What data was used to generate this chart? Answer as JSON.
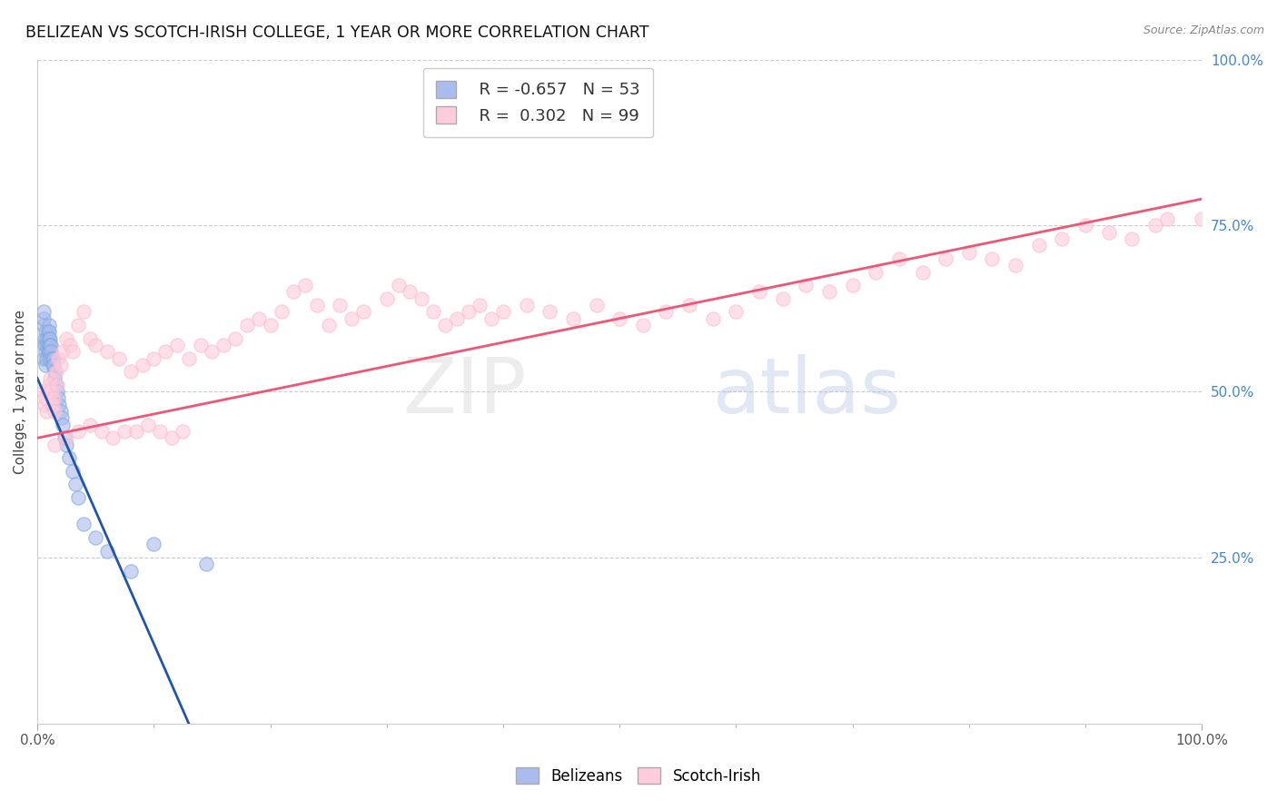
{
  "title": "BELIZEAN VS SCOTCH-IRISH COLLEGE, 1 YEAR OR MORE CORRELATION CHART",
  "source_text": "Source: ZipAtlas.com",
  "ylabel": "College, 1 year or more",
  "xlim": [
    0.0,
    1.0
  ],
  "ylim": [
    0.0,
    1.0
  ],
  "ytick_vals_right": [
    0.25,
    0.5,
    0.75,
    1.0
  ],
  "ytick_labels_right": [
    "25.0%",
    "50.0%",
    "75.0%",
    "100.0%"
  ],
  "grid_color": "#cccccc",
  "background_color": "#ffffff",
  "legend_r_blue": "-0.657",
  "legend_n_blue": "53",
  "legend_r_pink": "0.302",
  "legend_n_pink": "99",
  "blue_scatter_x": [
    0.005,
    0.005,
    0.005,
    0.005,
    0.006,
    0.006,
    0.007,
    0.007,
    0.007,
    0.008,
    0.008,
    0.008,
    0.009,
    0.009,
    0.009,
    0.009,
    0.01,
    0.01,
    0.01,
    0.01,
    0.01,
    0.01,
    0.011,
    0.011,
    0.011,
    0.012,
    0.012,
    0.012,
    0.013,
    0.013,
    0.014,
    0.014,
    0.015,
    0.015,
    0.016,
    0.017,
    0.018,
    0.019,
    0.02,
    0.021,
    0.022,
    0.023,
    0.025,
    0.027,
    0.03,
    0.033,
    0.035,
    0.04,
    0.05,
    0.06,
    0.08,
    0.1,
    0.145
  ],
  "blue_scatter_y": [
    0.6,
    0.61,
    0.62,
    0.55,
    0.58,
    0.57,
    0.59,
    0.56,
    0.54,
    0.58,
    0.57,
    0.55,
    0.59,
    0.58,
    0.57,
    0.56,
    0.6,
    0.59,
    0.58,
    0.57,
    0.56,
    0.55,
    0.58,
    0.57,
    0.56,
    0.57,
    0.56,
    0.55,
    0.55,
    0.54,
    0.55,
    0.54,
    0.53,
    0.52,
    0.51,
    0.5,
    0.49,
    0.48,
    0.47,
    0.46,
    0.45,
    0.43,
    0.42,
    0.4,
    0.38,
    0.36,
    0.34,
    0.3,
    0.28,
    0.26,
    0.23,
    0.27,
    0.24
  ],
  "pink_scatter_x": [
    0.005,
    0.006,
    0.007,
    0.008,
    0.009,
    0.01,
    0.011,
    0.012,
    0.013,
    0.014,
    0.015,
    0.016,
    0.017,
    0.018,
    0.02,
    0.022,
    0.025,
    0.028,
    0.03,
    0.035,
    0.04,
    0.045,
    0.05,
    0.06,
    0.07,
    0.08,
    0.09,
    0.1,
    0.11,
    0.12,
    0.13,
    0.14,
    0.15,
    0.16,
    0.17,
    0.18,
    0.19,
    0.2,
    0.21,
    0.22,
    0.23,
    0.24,
    0.25,
    0.26,
    0.27,
    0.28,
    0.3,
    0.31,
    0.32,
    0.33,
    0.34,
    0.35,
    0.36,
    0.37,
    0.38,
    0.39,
    0.4,
    0.42,
    0.44,
    0.46,
    0.48,
    0.5,
    0.52,
    0.54,
    0.56,
    0.58,
    0.6,
    0.62,
    0.64,
    0.66,
    0.68,
    0.7,
    0.72,
    0.74,
    0.76,
    0.78,
    0.8,
    0.82,
    0.84,
    0.86,
    0.88,
    0.9,
    0.92,
    0.94,
    0.96,
    0.97,
    1.0,
    0.015,
    0.025,
    0.035,
    0.045,
    0.055,
    0.065,
    0.075,
    0.085,
    0.095,
    0.105,
    0.115,
    0.125
  ],
  "pink_scatter_y": [
    0.5,
    0.48,
    0.49,
    0.47,
    0.5,
    0.51,
    0.52,
    0.5,
    0.48,
    0.49,
    0.47,
    0.53,
    0.51,
    0.55,
    0.54,
    0.56,
    0.58,
    0.57,
    0.56,
    0.6,
    0.62,
    0.58,
    0.57,
    0.56,
    0.55,
    0.53,
    0.54,
    0.55,
    0.56,
    0.57,
    0.55,
    0.57,
    0.56,
    0.57,
    0.58,
    0.6,
    0.61,
    0.6,
    0.62,
    0.65,
    0.66,
    0.63,
    0.6,
    0.63,
    0.61,
    0.62,
    0.64,
    0.66,
    0.65,
    0.64,
    0.62,
    0.6,
    0.61,
    0.62,
    0.63,
    0.61,
    0.62,
    0.63,
    0.62,
    0.61,
    0.63,
    0.61,
    0.6,
    0.62,
    0.63,
    0.61,
    0.62,
    0.65,
    0.64,
    0.66,
    0.65,
    0.66,
    0.68,
    0.7,
    0.68,
    0.7,
    0.71,
    0.7,
    0.69,
    0.72,
    0.73,
    0.75,
    0.74,
    0.73,
    0.75,
    0.76,
    0.76,
    0.42,
    0.43,
    0.44,
    0.45,
    0.44,
    0.43,
    0.44,
    0.44,
    0.45,
    0.44,
    0.43,
    0.44
  ],
  "blue_line_x": [
    0.0,
    0.155
  ],
  "blue_line_y": [
    0.52,
    -0.1
  ],
  "pink_line_x": [
    0.0,
    1.0
  ],
  "pink_line_y": [
    0.43,
    0.79
  ],
  "blue_color": "#7faadd",
  "pink_color": "#ffbbcc",
  "blue_fill_color": "#aabbee",
  "pink_fill_color": "#ffccdd",
  "blue_line_color": "#2255aa",
  "pink_line_color": "#ee5577",
  "scatter_alpha": 0.6,
  "marker_size": 120
}
